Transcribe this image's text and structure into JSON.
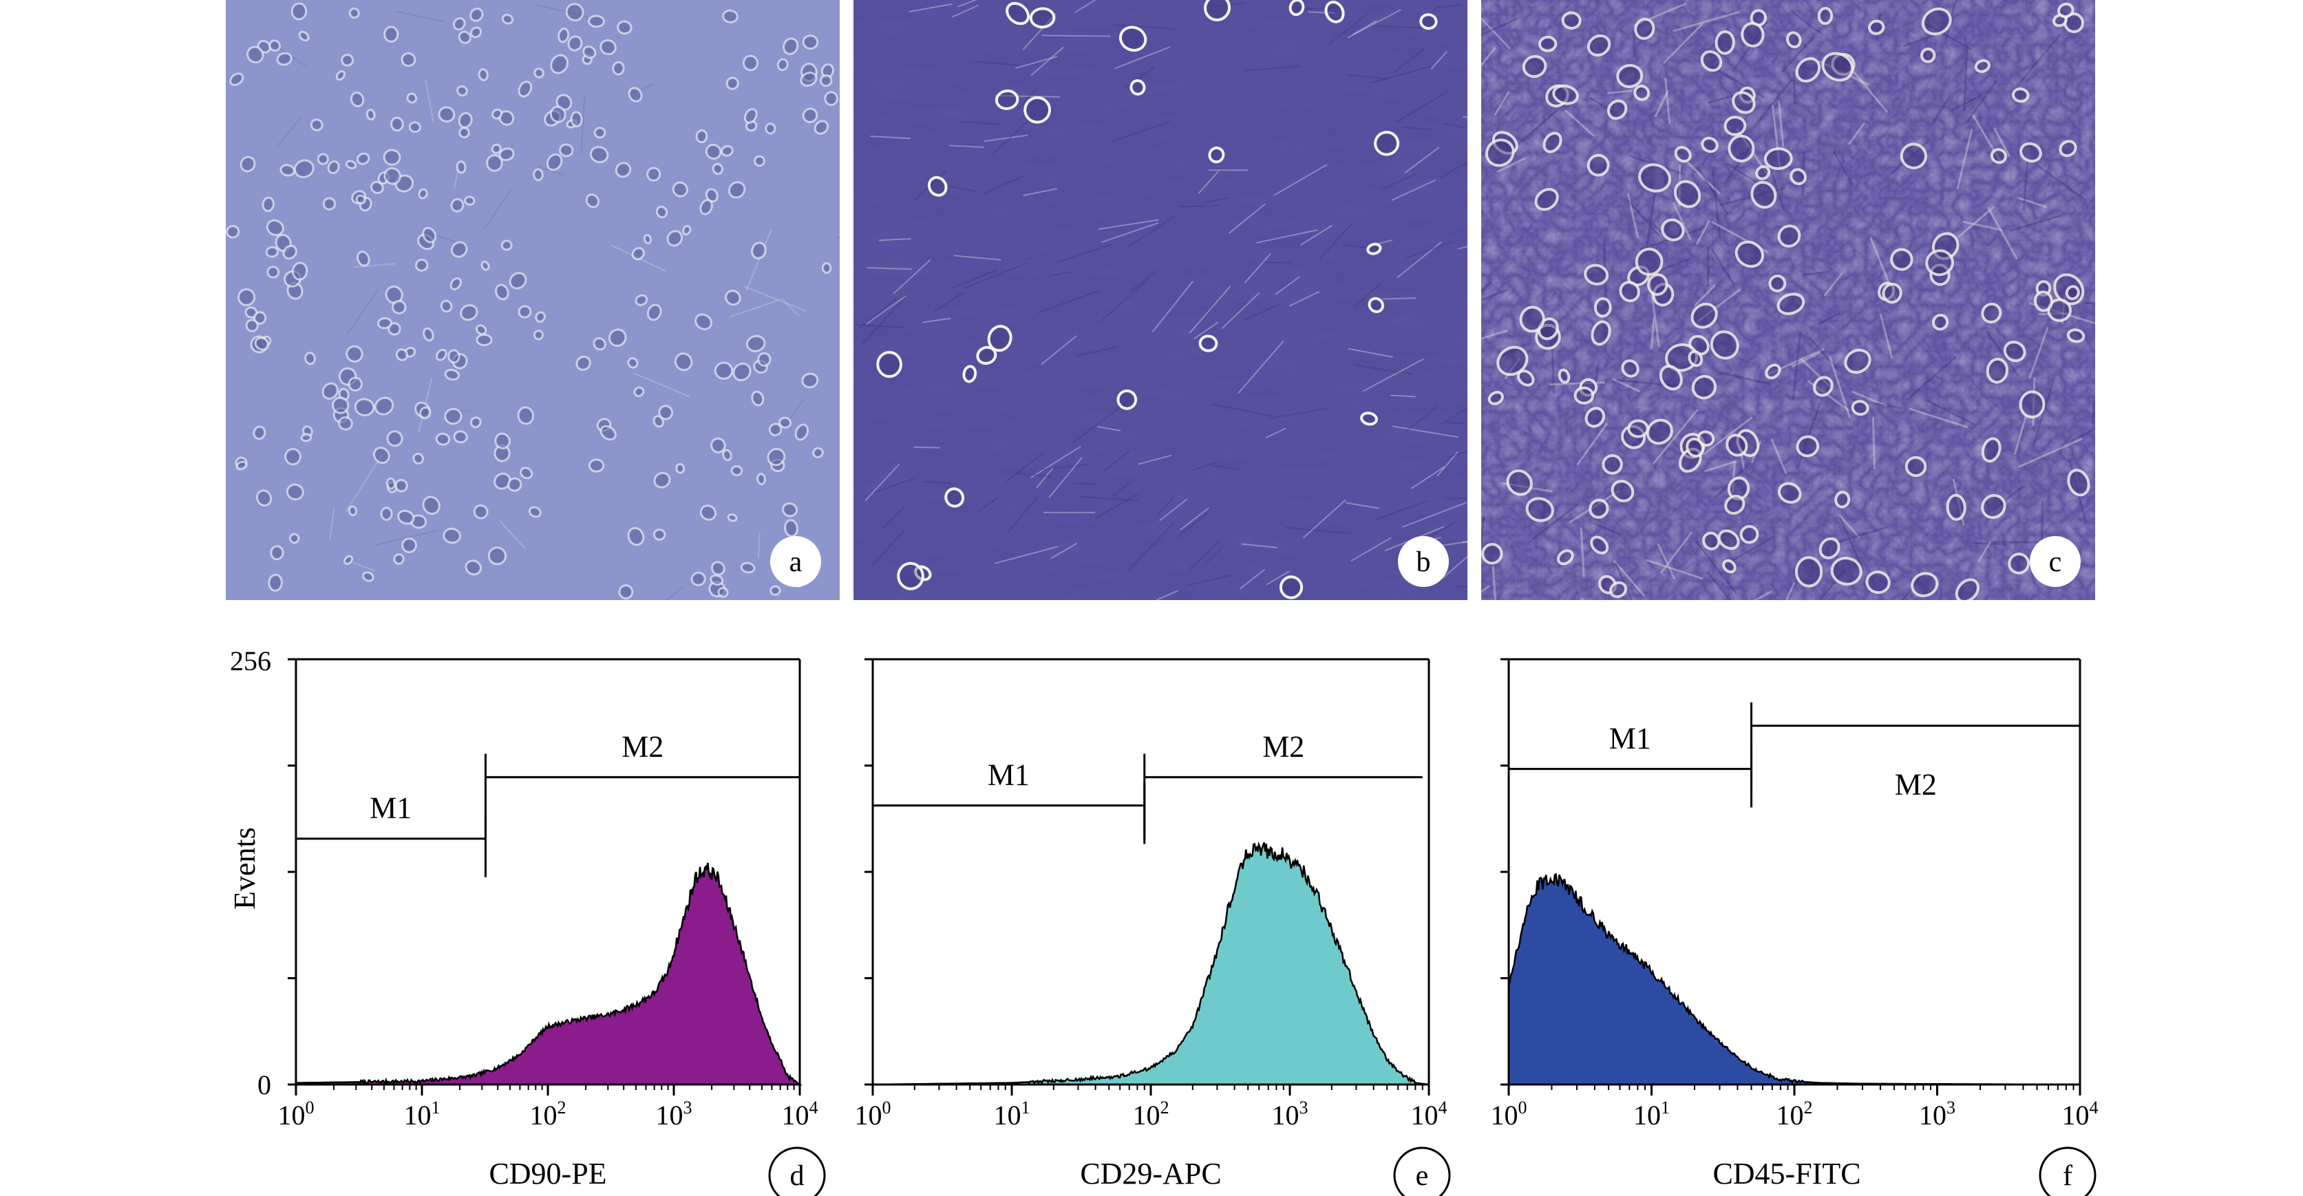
{
  "micrographs": [
    {
      "letter": "a",
      "bg": "#8c96cc",
      "cell_color": "#e8eef8",
      "dark": "#5a5f9a",
      "count": 260,
      "bright": 0.25
    },
    {
      "letter": "b",
      "bg": "#514c9c",
      "cell_color": "#f4f2ee",
      "dark": "#3a3478",
      "count": 26,
      "bright": 1.0
    },
    {
      "letter": "c",
      "bg": "#5a4e9e",
      "cell_color": "#f6eee8",
      "dark": "#3a2f78",
      "count": 140,
      "bright": 0.6
    }
  ],
  "y_axis": {
    "label": "Events",
    "max_label": "256",
    "min_label": "0",
    "ylim": [
      0,
      256
    ]
  },
  "x_axis": {
    "ticks": [
      {
        "base": "10",
        "exp": "0"
      },
      {
        "base": "10",
        "exp": "1"
      },
      {
        "base": "10",
        "exp": "2"
      },
      {
        "base": "10",
        "exp": "3"
      },
      {
        "base": "10",
        "exp": "4"
      }
    ]
  },
  "chart_data": [
    {
      "type": "area",
      "letter": "d",
      "xlabel": "CD90-PE",
      "ylabel": "Events",
      "xlim": [
        1,
        10000
      ],
      "ylim": [
        0,
        256
      ],
      "x_scale": "log",
      "fill": "#8b1c8c",
      "x": [
        1,
        10,
        25,
        40,
        60,
        80,
        100,
        150,
        200,
        300,
        400,
        500,
        700,
        900,
        1200,
        1500,
        1800,
        2200,
        2600,
        3200,
        4000,
        5000,
        6000,
        7000,
        8000,
        10000
      ],
      "y": [
        1,
        2,
        5,
        10,
        18,
        28,
        35,
        38,
        40,
        42,
        45,
        48,
        55,
        68,
        100,
        125,
        130,
        125,
        110,
        90,
        65,
        40,
        25,
        15,
        5,
        0
      ],
      "markers": [
        {
          "label": "M1",
          "from": 1,
          "to": 32,
          "level": 148
        },
        {
          "label": "M2",
          "from": 32,
          "to": 10000,
          "level": 185
        }
      ]
    },
    {
      "type": "area",
      "letter": "e",
      "xlabel": "CD29-APC",
      "ylabel": "Events",
      "xlim": [
        1,
        10000
      ],
      "ylim": [
        0,
        256
      ],
      "x_scale": "log",
      "fill": "#6fcbcb",
      "x": [
        1,
        10,
        30,
        60,
        100,
        150,
        200,
        300,
        400,
        500,
        600,
        700,
        900,
        1200,
        1500,
        1800,
        2200,
        2600,
        3200,
        4000,
        5000,
        6000,
        7000,
        8000,
        10000
      ],
      "y": [
        0,
        1,
        3,
        5,
        10,
        20,
        35,
        80,
        120,
        140,
        142,
        140,
        138,
        130,
        118,
        102,
        85,
        70,
        50,
        30,
        15,
        8,
        4,
        1,
        0
      ],
      "markers": [
        {
          "label": "M1",
          "from": 1,
          "to": 90,
          "level": 168
        },
        {
          "label": "M2",
          "from": 90,
          "to": 9000,
          "level": 185
        }
      ]
    },
    {
      "type": "area",
      "letter": "f",
      "xlabel": "CD45-FITC",
      "ylabel": "Events",
      "xlim": [
        1,
        10000
      ],
      "ylim": [
        0,
        256
      ],
      "x_scale": "log",
      "fill": "#2c4ca4",
      "x": [
        1,
        1.3,
        1.6,
        2,
        2.5,
        3,
        4,
        5,
        7,
        10,
        14,
        20,
        28,
        40,
        55,
        80,
        100,
        150,
        300,
        1000,
        10000
      ],
      "y": [
        60,
        100,
        120,
        125,
        120,
        112,
        100,
        90,
        80,
        68,
        55,
        40,
        28,
        16,
        8,
        3,
        2,
        1,
        0.5,
        0.3,
        0
      ],
      "markers": [
        {
          "label": "M1",
          "from": 1,
          "to": 50,
          "level": 190
        },
        {
          "label": "M2",
          "from": 50,
          "to": 10000,
          "level": 216
        }
      ]
    }
  ]
}
